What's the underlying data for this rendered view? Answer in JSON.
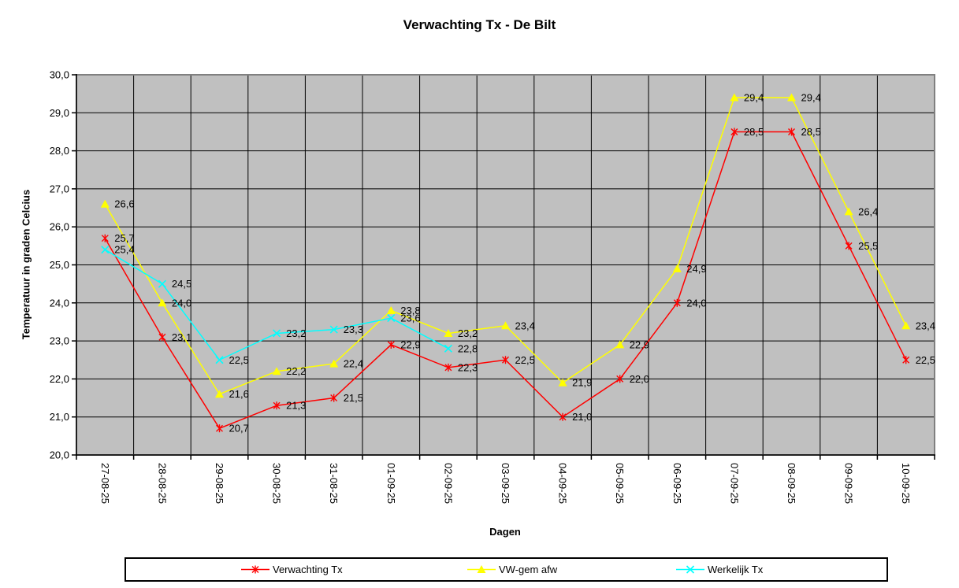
{
  "chart_data": {
    "type": "line",
    "title": "Verwachting Tx - De Bilt",
    "xlabel": "Dagen",
    "ylabel": "Temperatuur in graden Celcius",
    "ylim": [
      20,
      30
    ],
    "ytick_step": 1,
    "decimal_separator": ",",
    "grid": true,
    "data_labels": true,
    "legend_position": "bottom",
    "plot_bg_color": "#c0c0c0",
    "plot_border_color": "#808080",
    "gridline_color": "#000000",
    "axis_color": "#000000",
    "categories": [
      "27-08-25",
      "28-08-25",
      "29-08-25",
      "30-08-25",
      "31-08-25",
      "01-09-25",
      "02-09-25",
      "03-09-25",
      "04-09-25",
      "05-09-25",
      "06-09-25",
      "07-09-25",
      "08-09-25",
      "09-09-25",
      "10-09-25"
    ],
    "series": [
      {
        "name": "Verwachting Tx",
        "color": "#ff0000",
        "marker": "star",
        "values": [
          25.7,
          23.1,
          20.7,
          21.3,
          21.5,
          22.9,
          22.3,
          22.5,
          21.0,
          22.0,
          24.0,
          28.5,
          28.5,
          25.5,
          22.5
        ]
      },
      {
        "name": "VW-gem afw",
        "color": "#ffff00",
        "marker": "triangle",
        "values": [
          26.6,
          24.0,
          21.6,
          22.2,
          22.4,
          23.8,
          23.2,
          23.4,
          21.9,
          22.9,
          24.9,
          29.4,
          29.4,
          26.4,
          23.4
        ]
      },
      {
        "name": "Werkelijk Tx",
        "color": "#00ffff",
        "marker": "x",
        "values": [
          25.4,
          24.5,
          22.5,
          23.2,
          23.3,
          23.6,
          22.8,
          null,
          null,
          null,
          null,
          null,
          null,
          null,
          null
        ]
      }
    ]
  }
}
